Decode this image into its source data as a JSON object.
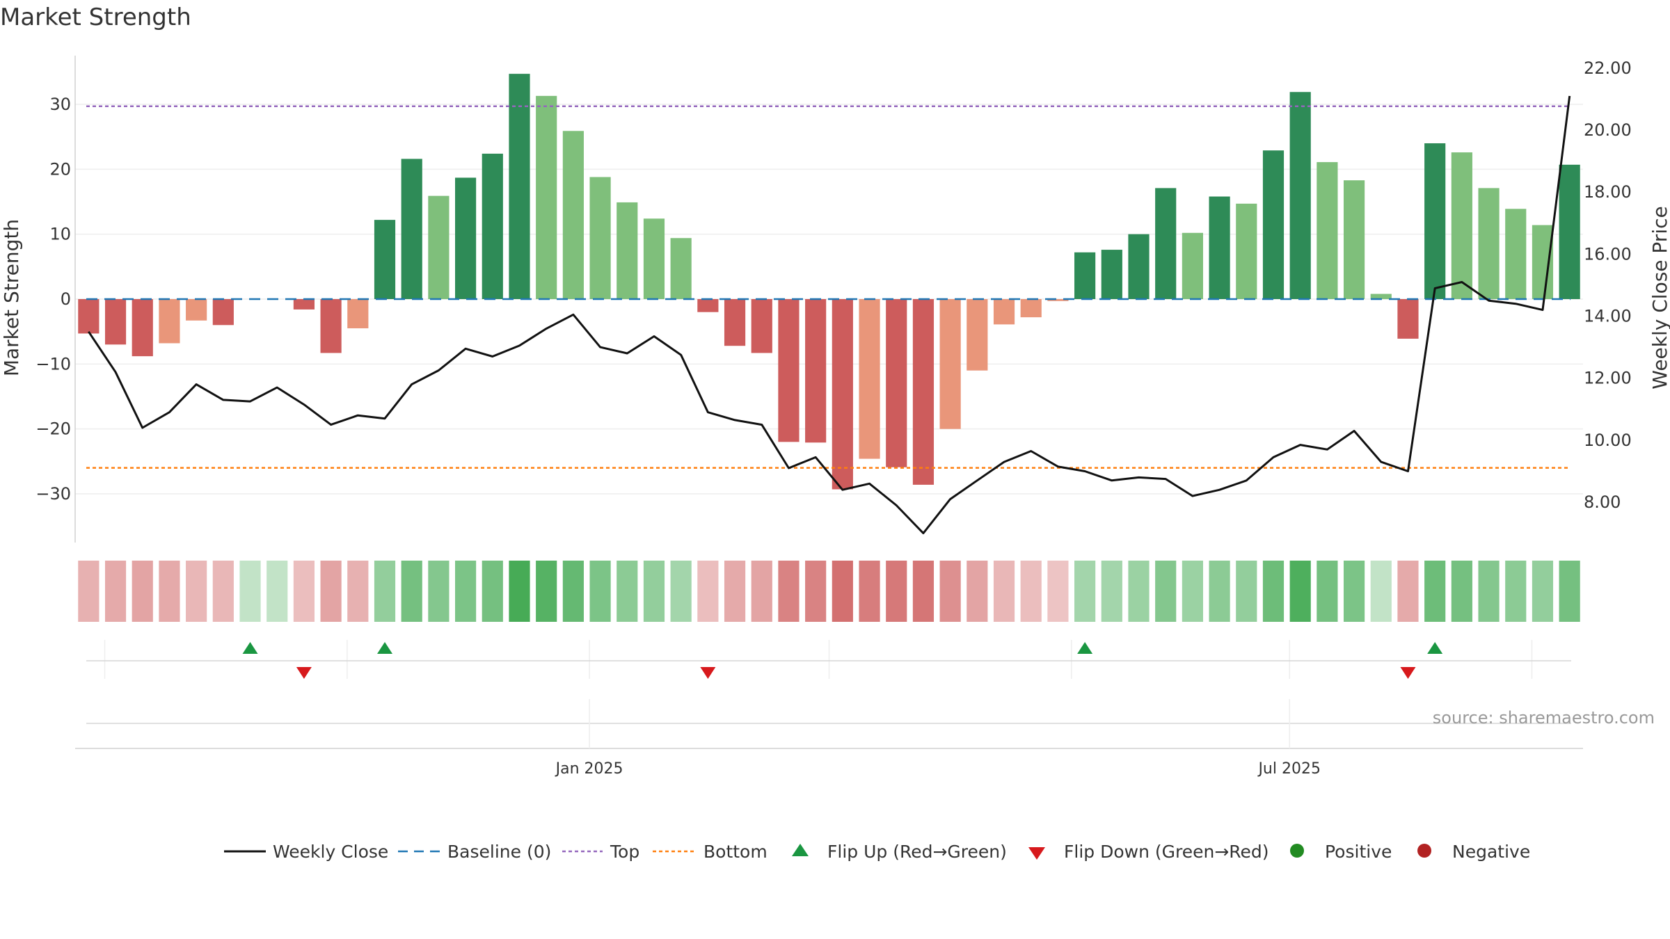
{
  "chart_data": {
    "type": "bar",
    "title": "Market Strength",
    "ylabel": "Market Strength",
    "y2label": "Weekly Close Price",
    "ylim": [
      -37.5,
      37.5
    ],
    "y2lim": [
      6.7,
      22.4
    ],
    "yticks": [
      -30,
      -20,
      -10,
      0,
      10,
      20,
      30
    ],
    "y2ticks": [
      "8.00",
      "10.00",
      "12.00",
      "14.00",
      "16.00",
      "18.00",
      "20.00",
      "22.00"
    ],
    "x_tick_labels": [
      {
        "label": "Jan 2025",
        "index": 18.6
      },
      {
        "label": "Jul 2025",
        "index": 44.6
      }
    ],
    "top_level": 29.7,
    "bottom_level": -26.0,
    "strength_values": [
      -5.3,
      -7.0,
      -8.8,
      -6.8,
      -3.3,
      -4.0,
      0,
      0,
      -1.6,
      -8.3,
      -4.5,
      12.2,
      21.6,
      15.9,
      18.7,
      22.4,
      34.7,
      31.3,
      25.9,
      18.8,
      14.9,
      12.4,
      9.4,
      -2.0,
      -7.2,
      -8.3,
      -22.0,
      -22.1,
      -29.3,
      -24.6,
      -25.9,
      -28.6,
      -20.0,
      -11.0,
      -3.9,
      -2.8,
      -0.3,
      7.2,
      7.6,
      10.0,
      17.1,
      10.2,
      15.8,
      14.7,
      22.9,
      31.9,
      21.1,
      18.3,
      0.8,
      -6.1,
      24.0,
      22.6,
      17.1,
      13.9,
      11.4,
      20.7
    ],
    "weekly_close": [
      13.5,
      12.2,
      10.4,
      10.9,
      11.8,
      11.3,
      11.25,
      11.7,
      11.15,
      10.5,
      10.8,
      10.7,
      11.8,
      12.25,
      12.95,
      12.7,
      13.05,
      13.6,
      14.05,
      13.0,
      12.8,
      13.35,
      12.75,
      10.9,
      10.65,
      10.5,
      9.1,
      9.45,
      8.4,
      8.6,
      7.9,
      7.0,
      8.1,
      8.7,
      9.3,
      9.65,
      9.15,
      9.0,
      8.7,
      8.8,
      8.75,
      8.2,
      8.4,
      8.7,
      9.45,
      9.85,
      9.7,
      10.3,
      9.3,
      9.0,
      14.9,
      15.1,
      14.5,
      14.4,
      14.2,
      21.1
    ],
    "heat_strip": [
      -0.35,
      -0.4,
      -0.45,
      -0.4,
      -0.3,
      -0.3,
      0.15,
      0.15,
      -0.25,
      -0.45,
      -0.35,
      0.45,
      0.65,
      0.55,
      0.6,
      0.65,
      0.95,
      0.85,
      0.75,
      0.6,
      0.5,
      0.45,
      0.35,
      -0.25,
      -0.4,
      -0.45,
      -0.7,
      -0.7,
      -0.85,
      -0.75,
      -0.78,
      -0.8,
      -0.6,
      -0.45,
      -0.3,
      -0.25,
      -0.2,
      0.35,
      0.35,
      0.4,
      0.55,
      0.4,
      0.5,
      0.45,
      0.7,
      0.9,
      0.65,
      0.6,
      0.15,
      -0.4,
      0.7,
      0.65,
      0.55,
      0.5,
      0.45,
      0.65
    ],
    "flip_up_indices": [
      6,
      11,
      37,
      50
    ],
    "flip_down_indices": [
      8,
      23,
      49
    ],
    "legend": [
      "Weekly Close",
      "Baseline (0)",
      "Top",
      "Bottom",
      "Flip Up (Red→Green)",
      "Flip Down (Green→Red)",
      "Positive",
      "Negative"
    ],
    "source": "source: sharemaestro.com"
  },
  "colors": {
    "strong_green": "#2e8b57",
    "light_green": "#7fbf7b",
    "strong_red": "#cd5c5c",
    "light_red": "#e9967a",
    "line": "#111111",
    "baseline": "#1f77b4",
    "top": "#9467bd",
    "bottom": "#ff7f0e",
    "flip_up": "#1a9641",
    "flip_down": "#d7191c",
    "positive": "#228b22",
    "negative": "#b22222"
  }
}
